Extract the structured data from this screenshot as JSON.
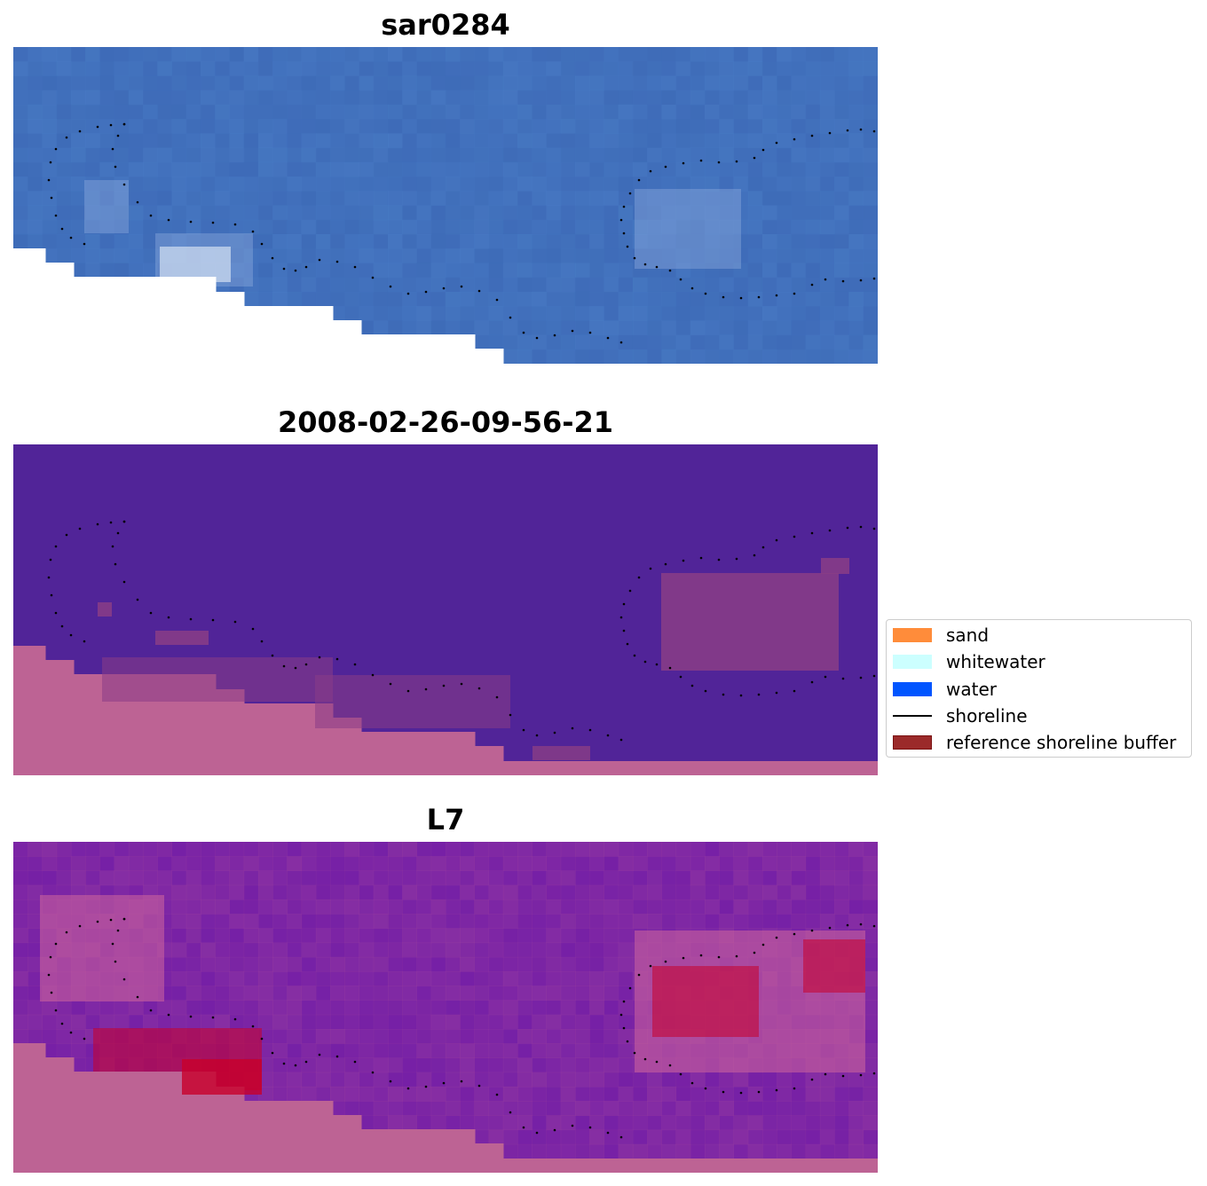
{
  "panels": [
    {
      "title": "sar0284",
      "kind": "rgb"
    },
    {
      "title": "2008-02-26-09-56-21",
      "kind": "classification"
    },
    {
      "title": "L7",
      "kind": "probability"
    }
  ],
  "legend": {
    "items": [
      {
        "label": "sand",
        "type": "patch",
        "color": "#ff8c3a"
      },
      {
        "label": "whitewater",
        "type": "patch",
        "color": "#ccffff"
      },
      {
        "label": "water",
        "type": "patch",
        "color": "#0055ff"
      },
      {
        "label": "shoreline",
        "type": "line",
        "color": "#000000"
      },
      {
        "label": "reference shoreline buffer",
        "type": "patch",
        "color": "#9b2a2a",
        "edge": "#7a1010"
      }
    ]
  },
  "colors": {
    "water_rgb": "#3f6cb5",
    "land_mask": "#ffffff",
    "class_water": "#512498",
    "class_land": "#bd6394",
    "class_buffer": "#8a3d86",
    "prob_low": "#6a16a8",
    "prob_high": "#c8002a",
    "shoreline_dots": "#000000"
  }
}
